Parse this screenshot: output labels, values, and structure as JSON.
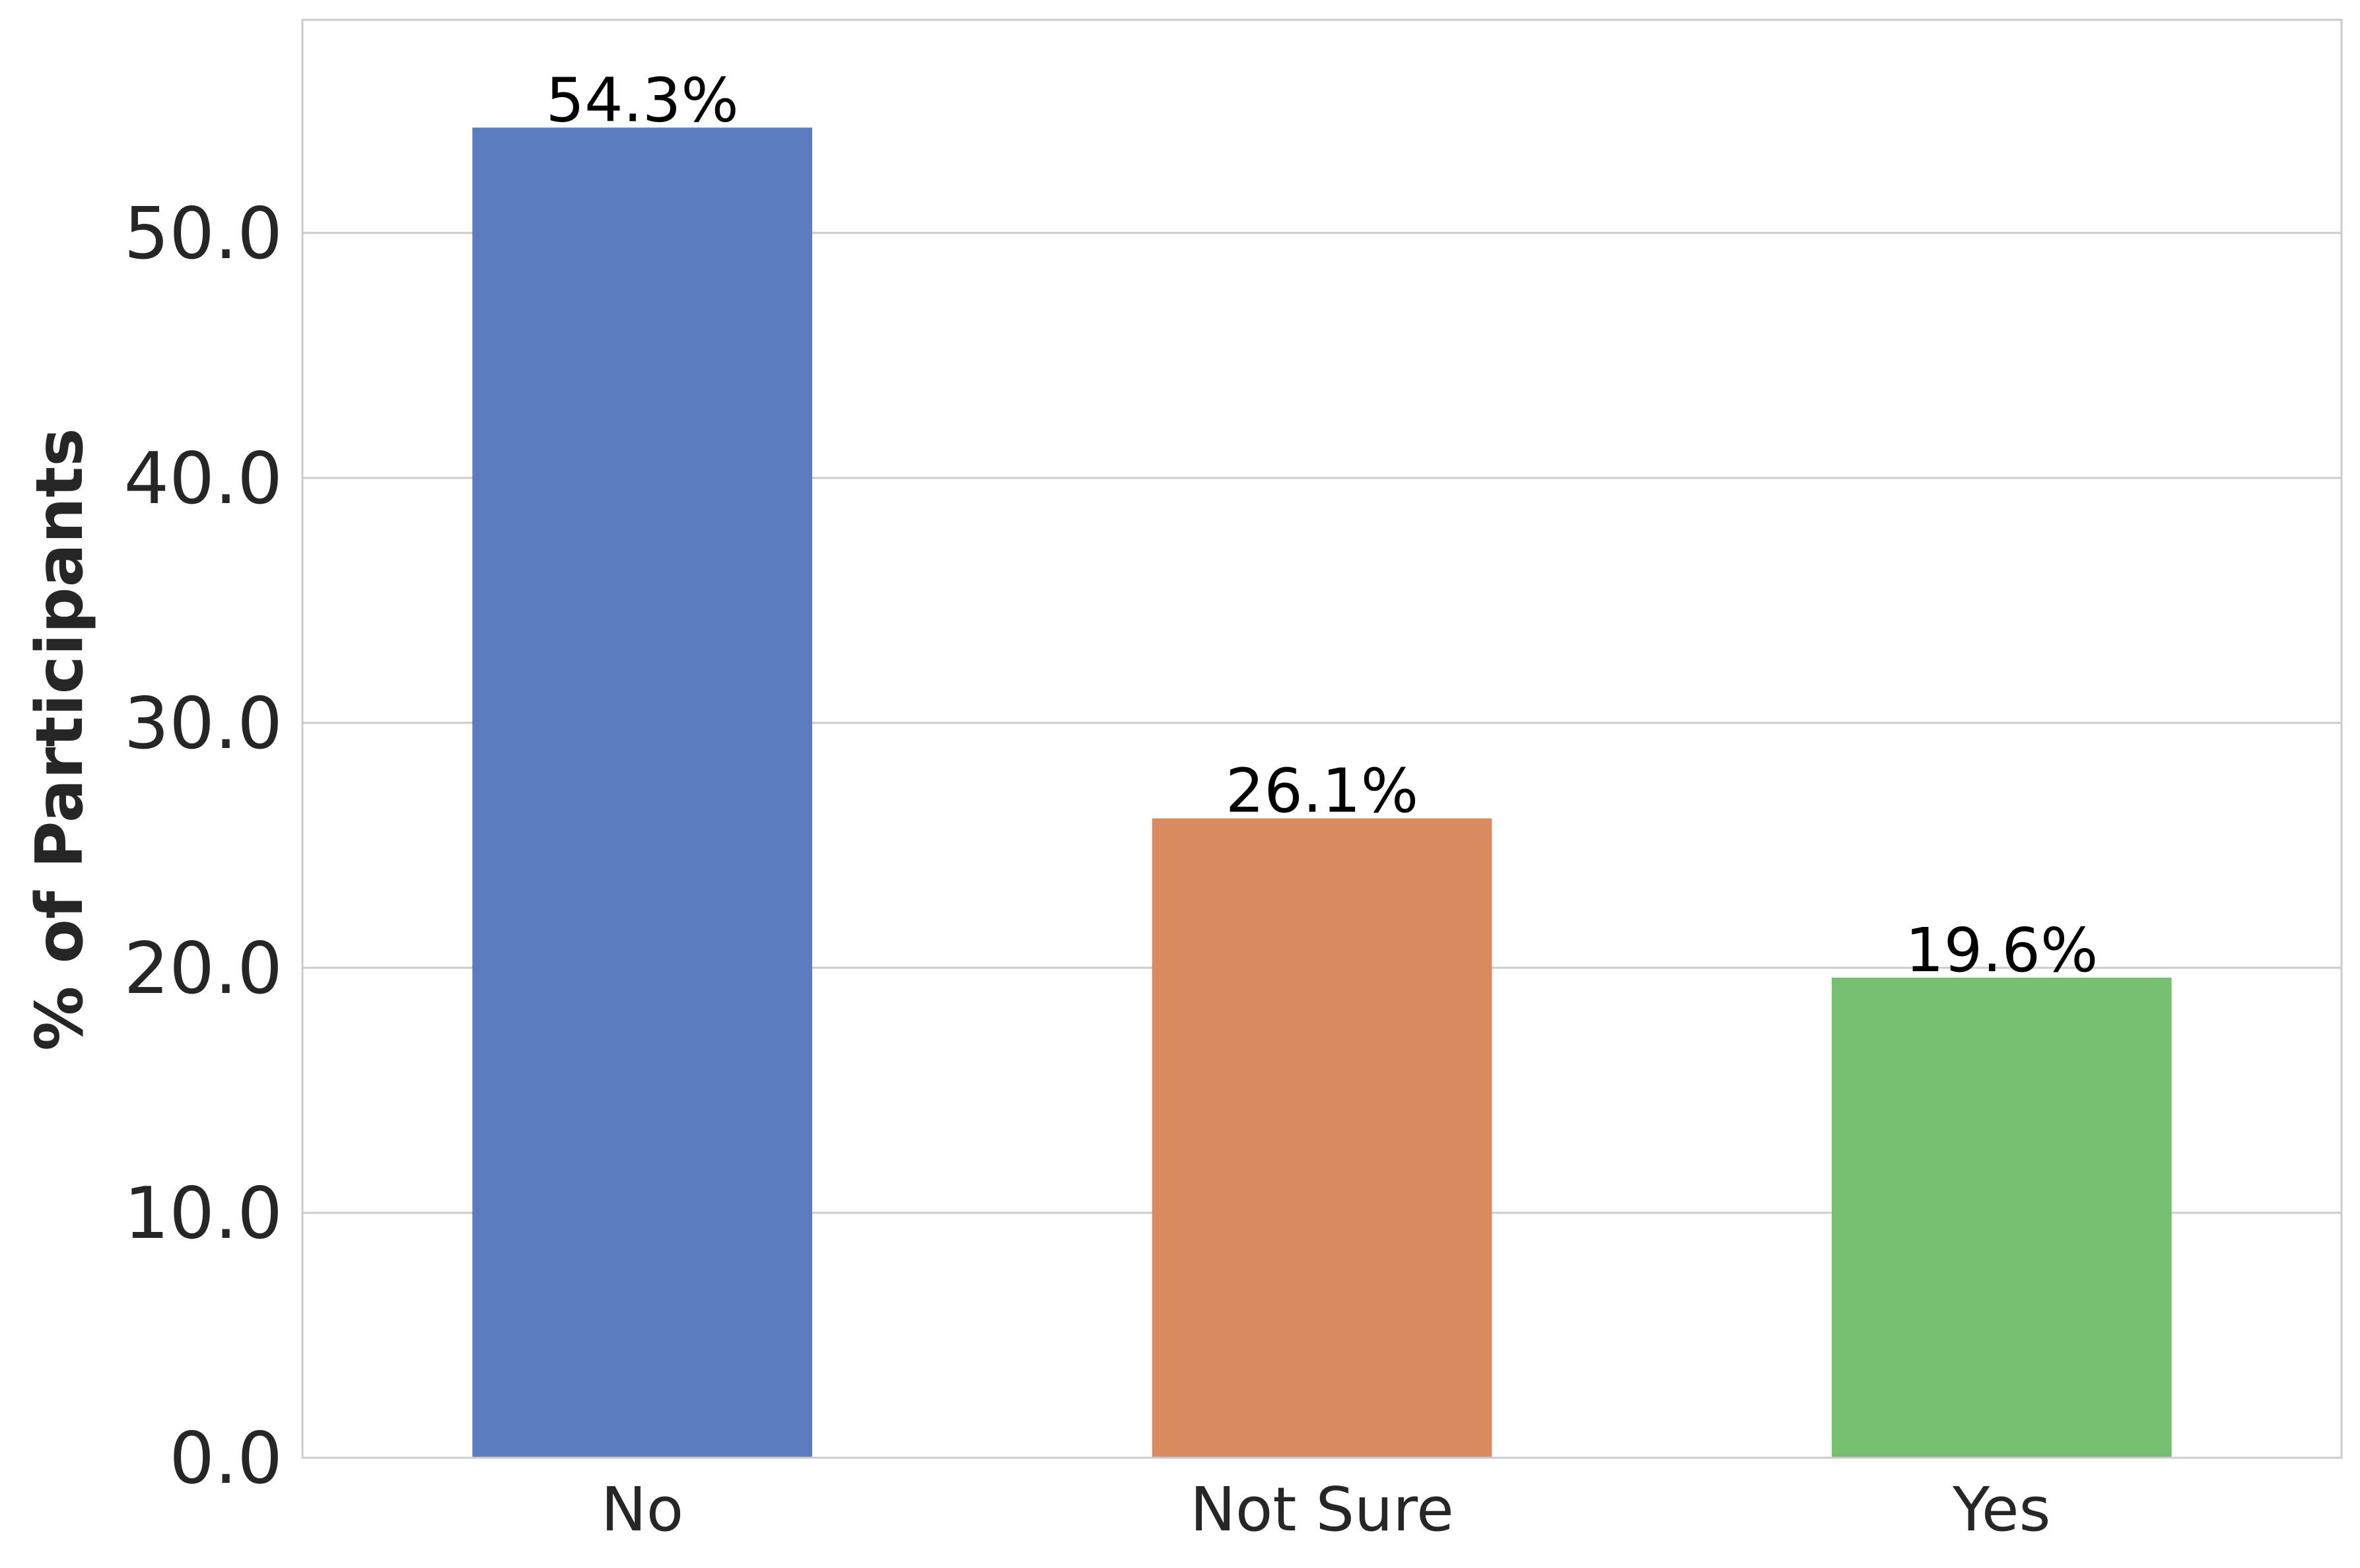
{
  "chart_data": {
    "type": "bar",
    "categories": [
      "No",
      "Not Sure",
      "Yes"
    ],
    "values": [
      54.3,
      26.1,
      19.6
    ],
    "value_labels": [
      "54.3%",
      "26.1%",
      "19.6%"
    ],
    "colors": [
      "#5b7cbe",
      "#d98a5f",
      "#76bf71"
    ],
    "title": "",
    "xlabel": "",
    "ylabel": "% of Participants",
    "ylim": [
      0,
      58.7
    ],
    "yticks": [
      0,
      10,
      20,
      30,
      40,
      50
    ],
    "ytick_labels": [
      "0.0",
      "10.0",
      "20.0",
      "30.0",
      "40.0",
      "50.0"
    ],
    "grid": "horizontal",
    "legend": "none"
  }
}
